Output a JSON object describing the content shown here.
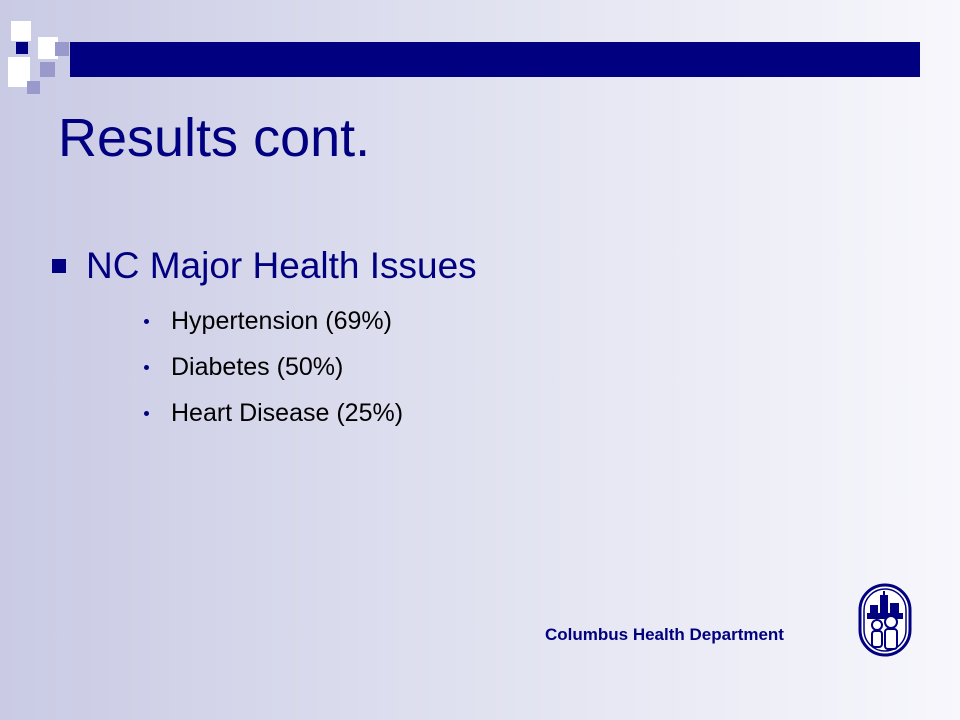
{
  "slide": {
    "title": "Results cont.",
    "bullet": "NC Major Health Issues",
    "sub_bullets": [
      "Hypertension (69%)",
      "Diabetes (50%)",
      "Heart Disease (25%)"
    ]
  },
  "footer": {
    "organization": "Columbus Health Department",
    "logo_icon": "columbus-health-department-logo-icon"
  },
  "colors": {
    "accent": "#000080",
    "decor_light": "#9999cc",
    "text": "#000000"
  }
}
